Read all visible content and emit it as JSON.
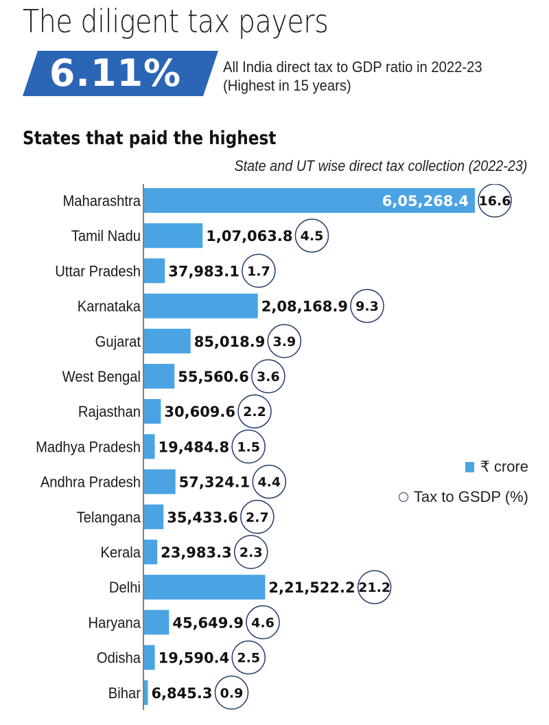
{
  "header": {
    "title": "The diligent tax payers",
    "highlight_value": "6.11%",
    "highlight_line1": "All India direct tax to GDP ratio in 2022-23",
    "highlight_line2": "(Highest in 15 years)",
    "section_title": "States that paid the highest",
    "chart_caption": "State and UT wise direct tax collection (2022-23)"
  },
  "colors": {
    "bar": "#4aa3e2",
    "banner": "#2b65b5",
    "circle_stroke": "#1f3a66",
    "axis": "#555555"
  },
  "legend": {
    "bar_label": "₹ crore",
    "circle_label": "Tax to GSDP (%)"
  },
  "chart_data": {
    "type": "bar",
    "orientation": "horizontal",
    "title": "State and UT wise direct tax collection (2022-23)",
    "xlabel": "",
    "ylabel": "",
    "unit": "₹ crore",
    "grid": false,
    "legend_position": "right",
    "categories": [
      "Maharashtra",
      "Tamil Nadu",
      "Uttar Pradesh",
      "Karnataka",
      "Gujarat",
      "West Bengal",
      "Rajasthan",
      "Madhya Pradesh",
      "Andhra Pradesh",
      "Telangana",
      "Kerala",
      "Delhi",
      "Haryana",
      "Odisha",
      "Bihar"
    ],
    "series": [
      {
        "name": "₹ crore",
        "values": [
          605268.4,
          107063.8,
          37983.1,
          208168.9,
          85018.9,
          55560.6,
          30609.6,
          19484.8,
          57324.1,
          35433.6,
          23983.3,
          221522.2,
          45649.9,
          19590.4,
          6845.3
        ],
        "labels": [
          "6,05,268.4",
          "1,07,063.8",
          "37,983.1",
          "2,08,168.9",
          "85,018.9",
          "55,560.6",
          "30,609.6",
          "19,484.8",
          "57,324.1",
          "35,433.6",
          "23,983.3",
          "2,21,522.2",
          "45,649.9",
          "19,590.4",
          "6,845.3"
        ]
      },
      {
        "name": "Tax to GSDP (%)",
        "values": [
          16.6,
          4.5,
          1.7,
          9.3,
          3.9,
          3.6,
          2.2,
          1.5,
          4.4,
          2.7,
          2.3,
          21.2,
          4.6,
          2.5,
          0.9
        ],
        "labels": [
          "16.6",
          "4.5",
          "1.7",
          "9.3",
          "3.9",
          "3.6",
          "2.2",
          "1.5",
          "4.4",
          "2.7",
          "2.3",
          "21.2",
          "4.6",
          "2.5",
          "0.9"
        ]
      }
    ],
    "xlim": [
      0,
      605268.4
    ]
  }
}
